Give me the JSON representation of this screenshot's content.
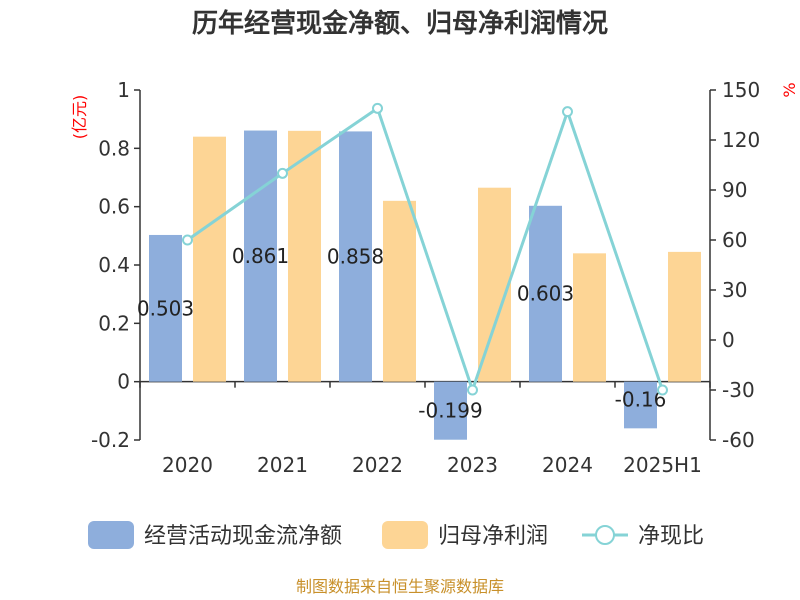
{
  "chart_data": {
    "type": "bar",
    "title": "历年经营现金净额、归母净利润情况",
    "categories": [
      "2020",
      "2021",
      "2022",
      "2023",
      "2024",
      "2025H1"
    ],
    "series": [
      {
        "name": "经营活动现金流净额",
        "type": "bar",
        "axis": "left",
        "color": "#8eaedc",
        "values": [
          0.503,
          0.861,
          0.858,
          -0.199,
          0.603,
          -0.16
        ],
        "labels": [
          "0.503",
          "0.861",
          "0.858",
          "-0.199",
          "0.603",
          "-0.16"
        ]
      },
      {
        "name": "归母净利润",
        "type": "bar",
        "axis": "left",
        "color": "#fdd595",
        "values": [
          0.84,
          0.86,
          0.62,
          0.665,
          0.44,
          0.445
        ]
      },
      {
        "name": "净现比",
        "type": "line",
        "axis": "right",
        "color": "#85d3d6",
        "values": [
          60,
          100,
          139,
          -30,
          137,
          -30
        ]
      }
    ],
    "left_axis": {
      "unit": "(亿元)",
      "ylim": [
        -0.2,
        1.0
      ],
      "ticks": [
        "-0.2",
        "0",
        "0.2",
        "0.4",
        "0.6",
        "0.8",
        "1"
      ]
    },
    "right_axis": {
      "unit": "%",
      "ylim": [
        -60,
        150
      ],
      "ticks": [
        "-60",
        "-30",
        "0",
        "30",
        "60",
        "90",
        "120",
        "150"
      ]
    },
    "grid": false,
    "legend_position": "bottom"
  },
  "source": "制图数据来自恒生聚源数据库"
}
